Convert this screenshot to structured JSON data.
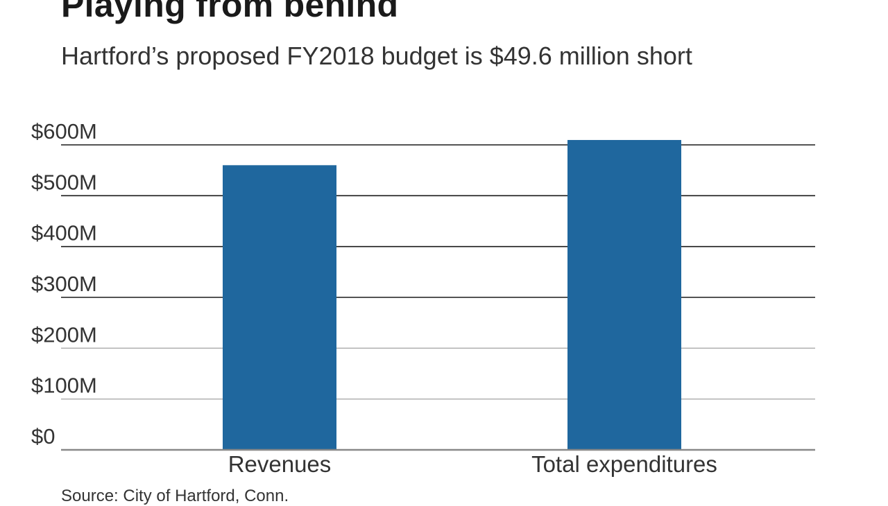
{
  "header": {
    "title": "Playing from behind",
    "subtitle": "Hartford’s proposed FY2018 budget is $49.6 million short"
  },
  "footer": {
    "source": "Source: City of Hartford, Conn."
  },
  "colors": {
    "bar": "#1f679e",
    "gridline": "#aaaaaa",
    "gridline_dark": "#1a1a1a",
    "baseline": "#888888"
  },
  "chart_data": {
    "type": "bar",
    "title": "Playing from behind",
    "subtitle": "Hartford’s proposed FY2018 budget is $49.6 million short",
    "categories": [
      "Revenues",
      "Total expenditures"
    ],
    "values": [
      560,
      609.6
    ],
    "unit": "million USD",
    "xlabel": "",
    "ylabel": "",
    "ylim": [
      0,
      600
    ],
    "yticks": [
      0,
      100,
      200,
      300,
      400,
      500,
      600
    ],
    "ytick_labels": [
      "$0",
      "$100M",
      "$200M",
      "$300M",
      "$400M",
      "$500M",
      "$600M"
    ],
    "grid": true,
    "legend": "none"
  }
}
